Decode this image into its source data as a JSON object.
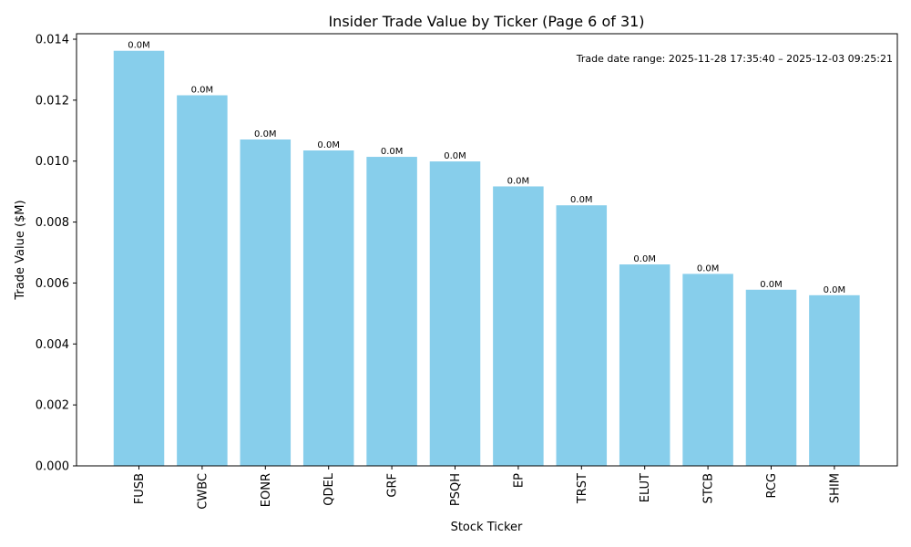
{
  "chart_data": {
    "type": "bar",
    "title": "Insider Trade Value by Ticker (Page 6 of 31)",
    "xlabel": "Stock Ticker",
    "ylabel": "Trade Value ($M)",
    "categories": [
      "FUSB",
      "CWBC",
      "EONR",
      "QDEL",
      "GRF",
      "PSQH",
      "EP",
      "TRST",
      "ELUT",
      "STCB",
      "RCG",
      "SHIM"
    ],
    "values": [
      0.01362,
      0.01216,
      0.01071,
      0.01035,
      0.01014,
      0.00999,
      0.00917,
      0.00855,
      0.00661,
      0.0063,
      0.00578,
      0.0056
    ],
    "data_labels": [
      "0.0M",
      "0.0M",
      "0.0M",
      "0.0M",
      "0.0M",
      "0.0M",
      "0.0M",
      "0.0M",
      "0.0M",
      "0.0M",
      "0.0M",
      "0.0M"
    ],
    "ylim": [
      0,
      0.01418
    ],
    "yticks": [
      "0.000",
      "0.002",
      "0.004",
      "0.006",
      "0.008",
      "0.010",
      "0.012",
      "0.014"
    ],
    "ytick_values": [
      0,
      0.002,
      0.004,
      0.006,
      0.008,
      0.01,
      0.012,
      0.014
    ],
    "bar_color": "#87CEEB",
    "annotation": "Trade date range: 2025-11-28 17:35:40 – 2025-12-03 09:25:21",
    "grid": false
  }
}
